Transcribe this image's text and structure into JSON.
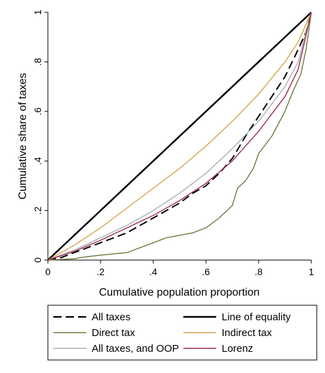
{
  "chart_data": {
    "type": "line",
    "title": "",
    "xlabel": "Cumulative population proportion",
    "ylabel": "Cumulative share of taxes",
    "xlim": [
      0,
      1
    ],
    "ylim": [
      0,
      1
    ],
    "x_ticks": [
      "0",
      ".2",
      ".4",
      ".6",
      ".8",
      "1"
    ],
    "y_ticks": [
      "0",
      ".2",
      ".4",
      ".6",
      ".8",
      "1"
    ],
    "grid": false,
    "legend": {
      "position": "bottom",
      "columns": 2
    },
    "series": [
      {
        "name": "All taxes",
        "color": "#000000",
        "dash": "long-dash",
        "points": [
          [
            0,
            0
          ],
          [
            0.05,
            0.01
          ],
          [
            0.1,
            0.03
          ],
          [
            0.15,
            0.05
          ],
          [
            0.2,
            0.07
          ],
          [
            0.25,
            0.09
          ],
          [
            0.3,
            0.11
          ],
          [
            0.35,
            0.14
          ],
          [
            0.4,
            0.17
          ],
          [
            0.45,
            0.2
          ],
          [
            0.5,
            0.23
          ],
          [
            0.55,
            0.27
          ],
          [
            0.6,
            0.3
          ],
          [
            0.65,
            0.35
          ],
          [
            0.7,
            0.41
          ],
          [
            0.75,
            0.5
          ],
          [
            0.8,
            0.58
          ],
          [
            0.85,
            0.66
          ],
          [
            0.9,
            0.74
          ],
          [
            0.95,
            0.85
          ],
          [
            0.98,
            0.92
          ],
          [
            1,
            1
          ]
        ]
      },
      {
        "name": "Line of equality",
        "color": "#000000",
        "dash": "solid",
        "points": [
          [
            0,
            0
          ],
          [
            1,
            1
          ]
        ]
      },
      {
        "name": "Direct tax",
        "color": "#6b7a3e",
        "dash": "solid",
        "points": [
          [
            0,
            0
          ],
          [
            0.1,
            0.005
          ],
          [
            0.12,
            0.01
          ],
          [
            0.2,
            0.02
          ],
          [
            0.3,
            0.03
          ],
          [
            0.35,
            0.05
          ],
          [
            0.4,
            0.07
          ],
          [
            0.45,
            0.09
          ],
          [
            0.5,
            0.1
          ],
          [
            0.55,
            0.11
          ],
          [
            0.6,
            0.13
          ],
          [
            0.65,
            0.17
          ],
          [
            0.7,
            0.22
          ],
          [
            0.72,
            0.29
          ],
          [
            0.75,
            0.32
          ],
          [
            0.78,
            0.37
          ],
          [
            0.8,
            0.43
          ],
          [
            0.85,
            0.5
          ],
          [
            0.9,
            0.6
          ],
          [
            0.93,
            0.68
          ],
          [
            0.96,
            0.75
          ],
          [
            0.98,
            0.85
          ],
          [
            1,
            1
          ]
        ]
      },
      {
        "name": "Indirect tax",
        "color": "#d4a34a",
        "dash": "solid",
        "points": [
          [
            0,
            0
          ],
          [
            0.1,
            0.06
          ],
          [
            0.2,
            0.13
          ],
          [
            0.3,
            0.21
          ],
          [
            0.4,
            0.29
          ],
          [
            0.5,
            0.37
          ],
          [
            0.6,
            0.46
          ],
          [
            0.7,
            0.56
          ],
          [
            0.8,
            0.67
          ],
          [
            0.9,
            0.8
          ],
          [
            0.95,
            0.88
          ],
          [
            1,
            1
          ]
        ]
      },
      {
        "name": "All taxes, and OOP",
        "color": "#a8aeb4",
        "dash": "solid",
        "points": [
          [
            0,
            0
          ],
          [
            0.1,
            0.04
          ],
          [
            0.2,
            0.09
          ],
          [
            0.3,
            0.14
          ],
          [
            0.4,
            0.2
          ],
          [
            0.5,
            0.27
          ],
          [
            0.6,
            0.35
          ],
          [
            0.7,
            0.45
          ],
          [
            0.8,
            0.56
          ],
          [
            0.9,
            0.7
          ],
          [
            0.95,
            0.8
          ],
          [
            1,
            1
          ]
        ]
      },
      {
        "name": "Lorenz",
        "color": "#9c2a4e",
        "dash": "solid",
        "points": [
          [
            0,
            0
          ],
          [
            0.1,
            0.035
          ],
          [
            0.2,
            0.08
          ],
          [
            0.3,
            0.13
          ],
          [
            0.4,
            0.18
          ],
          [
            0.5,
            0.24
          ],
          [
            0.6,
            0.31
          ],
          [
            0.7,
            0.4
          ],
          [
            0.8,
            0.52
          ],
          [
            0.9,
            0.66
          ],
          [
            0.95,
            0.77
          ],
          [
            1,
            1
          ]
        ]
      }
    ]
  }
}
